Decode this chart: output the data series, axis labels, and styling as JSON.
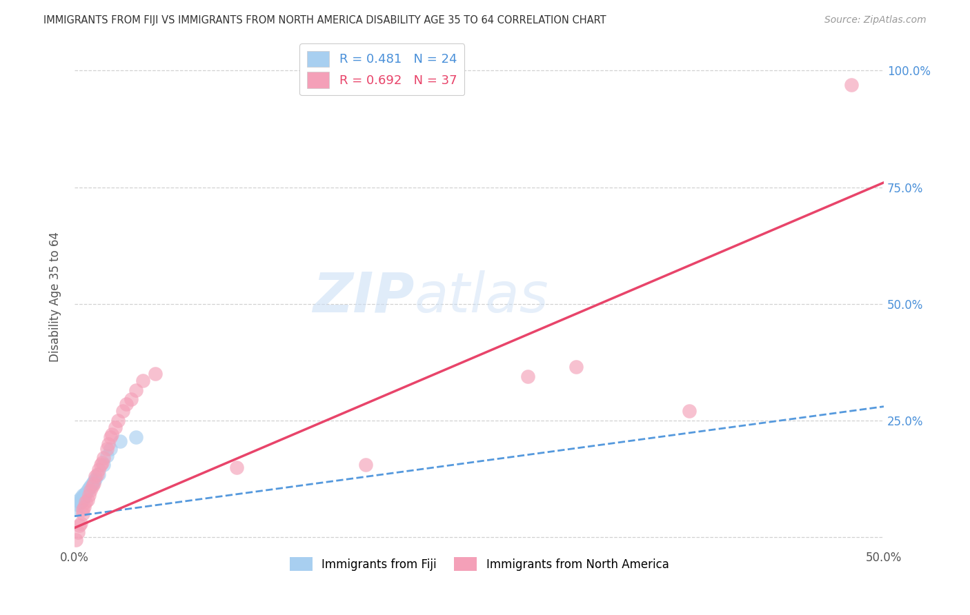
{
  "title": "IMMIGRANTS FROM FIJI VS IMMIGRANTS FROM NORTH AMERICA DISABILITY AGE 35 TO 64 CORRELATION CHART",
  "source": "Source: ZipAtlas.com",
  "ylabel": "Disability Age 35 to 64",
  "xlim": [
    0.0,
    0.5
  ],
  "ylim": [
    -0.02,
    1.05
  ],
  "fiji_R": 0.481,
  "fiji_N": 24,
  "na_R": 0.692,
  "na_N": 37,
  "fiji_color": "#a8cff0",
  "fiji_line_color": "#5599dd",
  "na_color": "#f4a0b8",
  "na_line_color": "#e8446a",
  "watermark_text": "ZIPatlas",
  "fiji_x": [
    0.001,
    0.002,
    0.003,
    0.003,
    0.004,
    0.004,
    0.005,
    0.005,
    0.005,
    0.006,
    0.006,
    0.007,
    0.008,
    0.009,
    0.01,
    0.011,
    0.012,
    0.013,
    0.015,
    0.018,
    0.02,
    0.022,
    0.028,
    0.038
  ],
  "fiji_y": [
    0.06,
    0.07,
    0.075,
    0.08,
    0.075,
    0.085,
    0.08,
    0.09,
    0.085,
    0.085,
    0.09,
    0.095,
    0.1,
    0.105,
    0.11,
    0.115,
    0.12,
    0.125,
    0.135,
    0.155,
    0.175,
    0.19,
    0.205,
    0.215
  ],
  "na_x": [
    0.001,
    0.002,
    0.003,
    0.004,
    0.005,
    0.005,
    0.006,
    0.007,
    0.008,
    0.009,
    0.01,
    0.011,
    0.012,
    0.013,
    0.014,
    0.015,
    0.016,
    0.017,
    0.018,
    0.02,
    0.021,
    0.022,
    0.023,
    0.025,
    0.027,
    0.03,
    0.032,
    0.035,
    0.038,
    0.042,
    0.05,
    0.1,
    0.18,
    0.28,
    0.31,
    0.38,
    0.48
  ],
  "na_y": [
    -0.005,
    0.01,
    0.025,
    0.03,
    0.05,
    0.06,
    0.065,
    0.075,
    0.08,
    0.09,
    0.1,
    0.11,
    0.115,
    0.13,
    0.135,
    0.145,
    0.155,
    0.16,
    0.17,
    0.19,
    0.2,
    0.215,
    0.22,
    0.235,
    0.25,
    0.27,
    0.285,
    0.295,
    0.315,
    0.335,
    0.35,
    0.15,
    0.155,
    0.345,
    0.365,
    0.27,
    0.97
  ],
  "fiji_line_x0": 0.0,
  "fiji_line_x1": 0.5,
  "fiji_line_y0": 0.045,
  "fiji_line_y1": 0.28,
  "na_line_x0": 0.0,
  "na_line_x1": 0.5,
  "na_line_y0": 0.02,
  "na_line_y1": 0.76
}
